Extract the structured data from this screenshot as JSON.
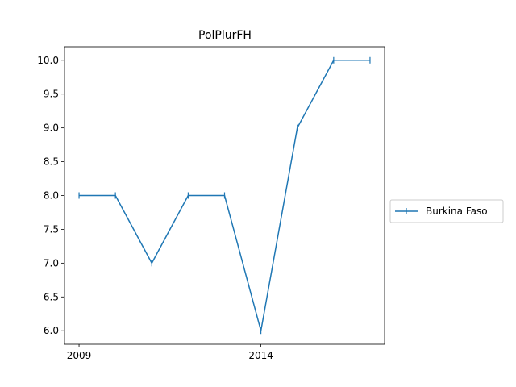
{
  "chart_data": {
    "type": "line",
    "title": "PolPlurFH",
    "xlabel": "",
    "ylabel": "",
    "x": [
      2009,
      2010,
      2011,
      2012,
      2013,
      2014,
      2015,
      2016,
      2017
    ],
    "series": [
      {
        "name": "Burkina Faso",
        "values": [
          8.0,
          8.0,
          7.0,
          8.0,
          8.0,
          6.0,
          9.0,
          10.0,
          10.0
        ],
        "color": "#1f77b4",
        "marker": "vertical-tick"
      }
    ],
    "xlim": [
      2008.6,
      2017.4
    ],
    "ylim": [
      5.8,
      10.2
    ],
    "xticks": [
      2009,
      2014
    ],
    "xtick_labels": [
      "2009",
      "2014"
    ],
    "yticks": [
      6.0,
      6.5,
      7.0,
      7.5,
      8.0,
      8.5,
      9.0,
      9.5,
      10.0
    ],
    "ytick_labels": [
      "6.0",
      "6.5",
      "7.0",
      "7.5",
      "8.0",
      "8.5",
      "9.0",
      "9.5",
      "10.0"
    ],
    "grid": false,
    "legend_position": "outside-right"
  }
}
